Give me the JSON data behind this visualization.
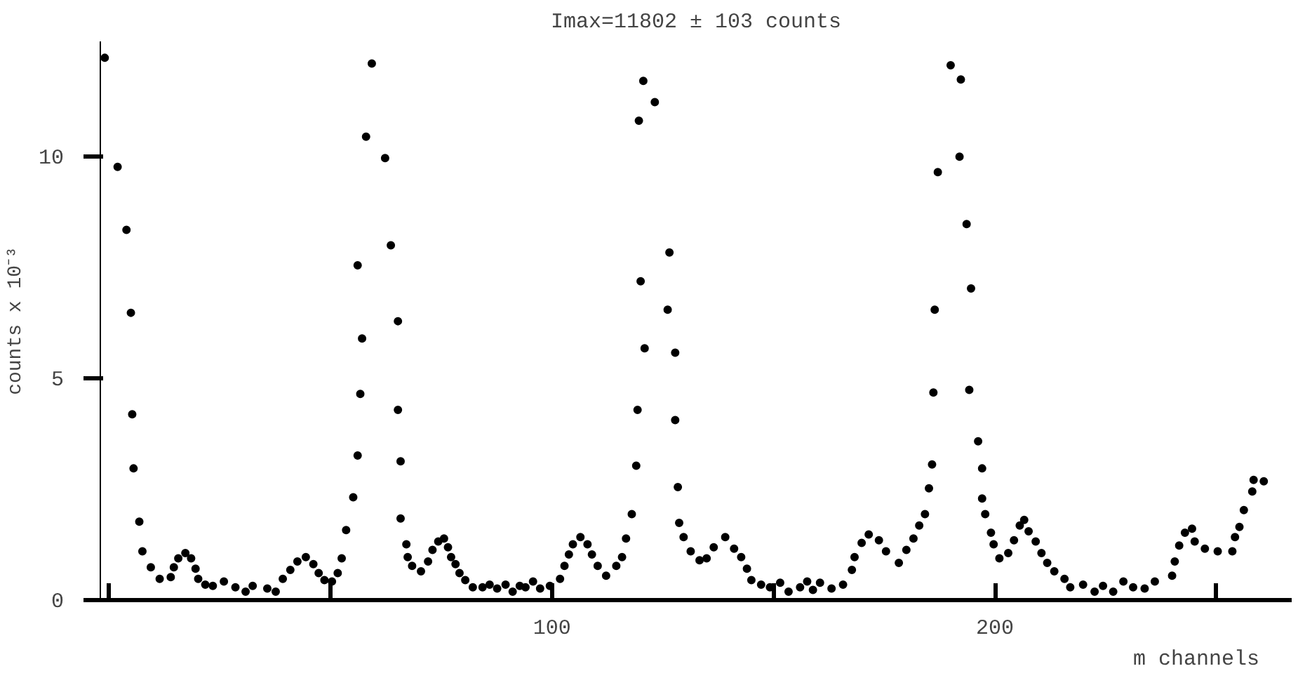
{
  "chart_data": {
    "type": "scatter",
    "title": "Imax=11802 ± 103 counts",
    "xlabel": "m   channels",
    "ylabel": "counts x 10⁻³",
    "marker": "circle",
    "grid": false,
    "xlim": [
      -2,
      267
    ],
    "ylim": [
      0,
      12.6
    ],
    "xticks": [
      {
        "value": 0,
        "label": null
      },
      {
        "value": 50,
        "label": null
      },
      100,
      {
        "value": 150,
        "label": null
      },
      200,
      {
        "value": 250,
        "label": null
      }
    ],
    "yticks": [
      0,
      5,
      10
    ],
    "series": [
      {
        "color": "#000000",
        "x": [
          -1.0,
          1.9,
          3.9,
          4.9,
          5.2,
          5.5,
          6.8,
          7.5,
          9.4,
          11.4,
          13.9,
          14.6,
          15.6,
          17.2,
          18.5,
          19.5,
          20.1,
          21.7,
          23.4,
          25.9,
          28.5,
          30.8,
          32.4,
          35.7,
          37.6,
          39.2,
          40.9,
          42.5,
          44.4,
          46.1,
          47.3,
          48.6,
          50.3,
          51.6,
          52.5,
          53.5,
          55.1,
          56.1,
          56.7,
          57.1,
          56.1,
          58.0,
          59.3,
          62.3,
          63.6,
          65.2,
          65.2,
          65.8,
          65.8,
          67.1,
          67.4,
          68.4,
          70.4,
          72.0,
          73.0,
          74.3,
          75.6,
          76.5,
          77.2,
          78.2,
          79.1,
          80.4,
          82.1,
          84.3,
          85.9,
          87.6,
          89.5,
          91.1,
          92.7,
          94.0,
          95.7,
          97.3,
          99.5,
          101.8,
          102.8,
          103.8,
          104.7,
          106.4,
          108.0,
          109.0,
          110.3,
          112.2,
          114.5,
          115.8,
          116.7,
          118.0,
          119.0,
          119.3,
          120.9,
          120.0,
          119.6,
          120.6,
          123.2,
          126.5,
          126.1,
          127.8,
          127.8,
          128.4,
          128.7,
          129.7,
          131.3,
          133.3,
          134.9,
          136.5,
          139.1,
          141.1,
          142.7,
          144.0,
          145.0,
          147.2,
          149.2,
          151.5,
          153.4,
          156.0,
          157.6,
          158.9,
          160.5,
          163.1,
          165.7,
          167.7,
          168.3,
          169.9,
          171.5,
          173.8,
          175.4,
          178.3,
          180.0,
          181.6,
          182.9,
          184.2,
          185.1,
          185.8,
          186.1,
          186.4,
          187.1,
          190.0,
          192.3,
          192.0,
          193.6,
          194.6,
          194.2,
          196.2,
          197.1,
          197.1,
          197.8,
          199.1,
          199.7,
          201.0,
          203.0,
          204.3,
          205.6,
          206.6,
          207.6,
          209.2,
          210.5,
          211.8,
          213.4,
          215.7,
          217.0,
          219.9,
          222.5,
          224.4,
          226.7,
          229.0,
          231.2,
          233.8,
          236.1,
          240.0,
          240.6,
          241.6,
          242.9,
          244.5,
          245.1,
          247.4,
          250.3,
          253.6,
          254.2,
          255.2,
          256.2,
          258.1,
          258.4,
          260.7
        ],
        "values": [
          12.23,
          9.77,
          8.35,
          6.48,
          4.19,
          2.97,
          1.77,
          1.1,
          0.74,
          0.48,
          0.52,
          0.74,
          0.94,
          1.06,
          0.94,
          0.71,
          0.48,
          0.35,
          0.32,
          0.42,
          0.29,
          0.19,
          0.32,
          0.26,
          0.19,
          0.48,
          0.68,
          0.87,
          0.97,
          0.81,
          0.61,
          0.45,
          0.42,
          0.61,
          0.94,
          1.58,
          2.32,
          3.26,
          4.65,
          5.9,
          7.55,
          10.45,
          12.1,
          9.97,
          8.0,
          6.29,
          4.29,
          3.13,
          1.84,
          1.26,
          0.97,
          0.77,
          0.65,
          0.87,
          1.13,
          1.32,
          1.39,
          1.19,
          0.97,
          0.81,
          0.61,
          0.45,
          0.29,
          0.29,
          0.35,
          0.26,
          0.35,
          0.19,
          0.32,
          0.29,
          0.42,
          0.26,
          0.32,
          0.48,
          0.77,
          1.03,
          1.26,
          1.42,
          1.26,
          1.03,
          0.77,
          0.55,
          0.77,
          0.97,
          1.39,
          1.94,
          3.03,
          4.29,
          5.68,
          7.19,
          10.81,
          11.71,
          11.23,
          7.84,
          6.55,
          5.58,
          4.06,
          2.55,
          1.74,
          1.42,
          1.1,
          0.9,
          0.94,
          1.19,
          1.42,
          1.16,
          0.97,
          0.71,
          0.45,
          0.35,
          0.29,
          0.39,
          0.19,
          0.29,
          0.42,
          0.23,
          0.39,
          0.26,
          0.35,
          0.68,
          0.97,
          1.29,
          1.48,
          1.35,
          1.1,
          0.84,
          1.13,
          1.39,
          1.68,
          1.94,
          2.52,
          3.06,
          4.68,
          6.55,
          9.65,
          12.06,
          11.74,
          10.0,
          8.48,
          7.03,
          4.74,
          3.58,
          2.97,
          2.29,
          1.94,
          1.52,
          1.26,
          0.94,
          1.06,
          1.35,
          1.68,
          1.81,
          1.55,
          1.32,
          1.06,
          0.84,
          0.65,
          0.48,
          0.29,
          0.35,
          0.19,
          0.32,
          0.19,
          0.42,
          0.29,
          0.26,
          0.42,
          0.55,
          0.87,
          1.23,
          1.52,
          1.61,
          1.32,
          1.16,
          1.1,
          1.1,
          1.42,
          1.65,
          2.03,
          2.45,
          2.71,
          2.68
        ]
      }
    ]
  }
}
